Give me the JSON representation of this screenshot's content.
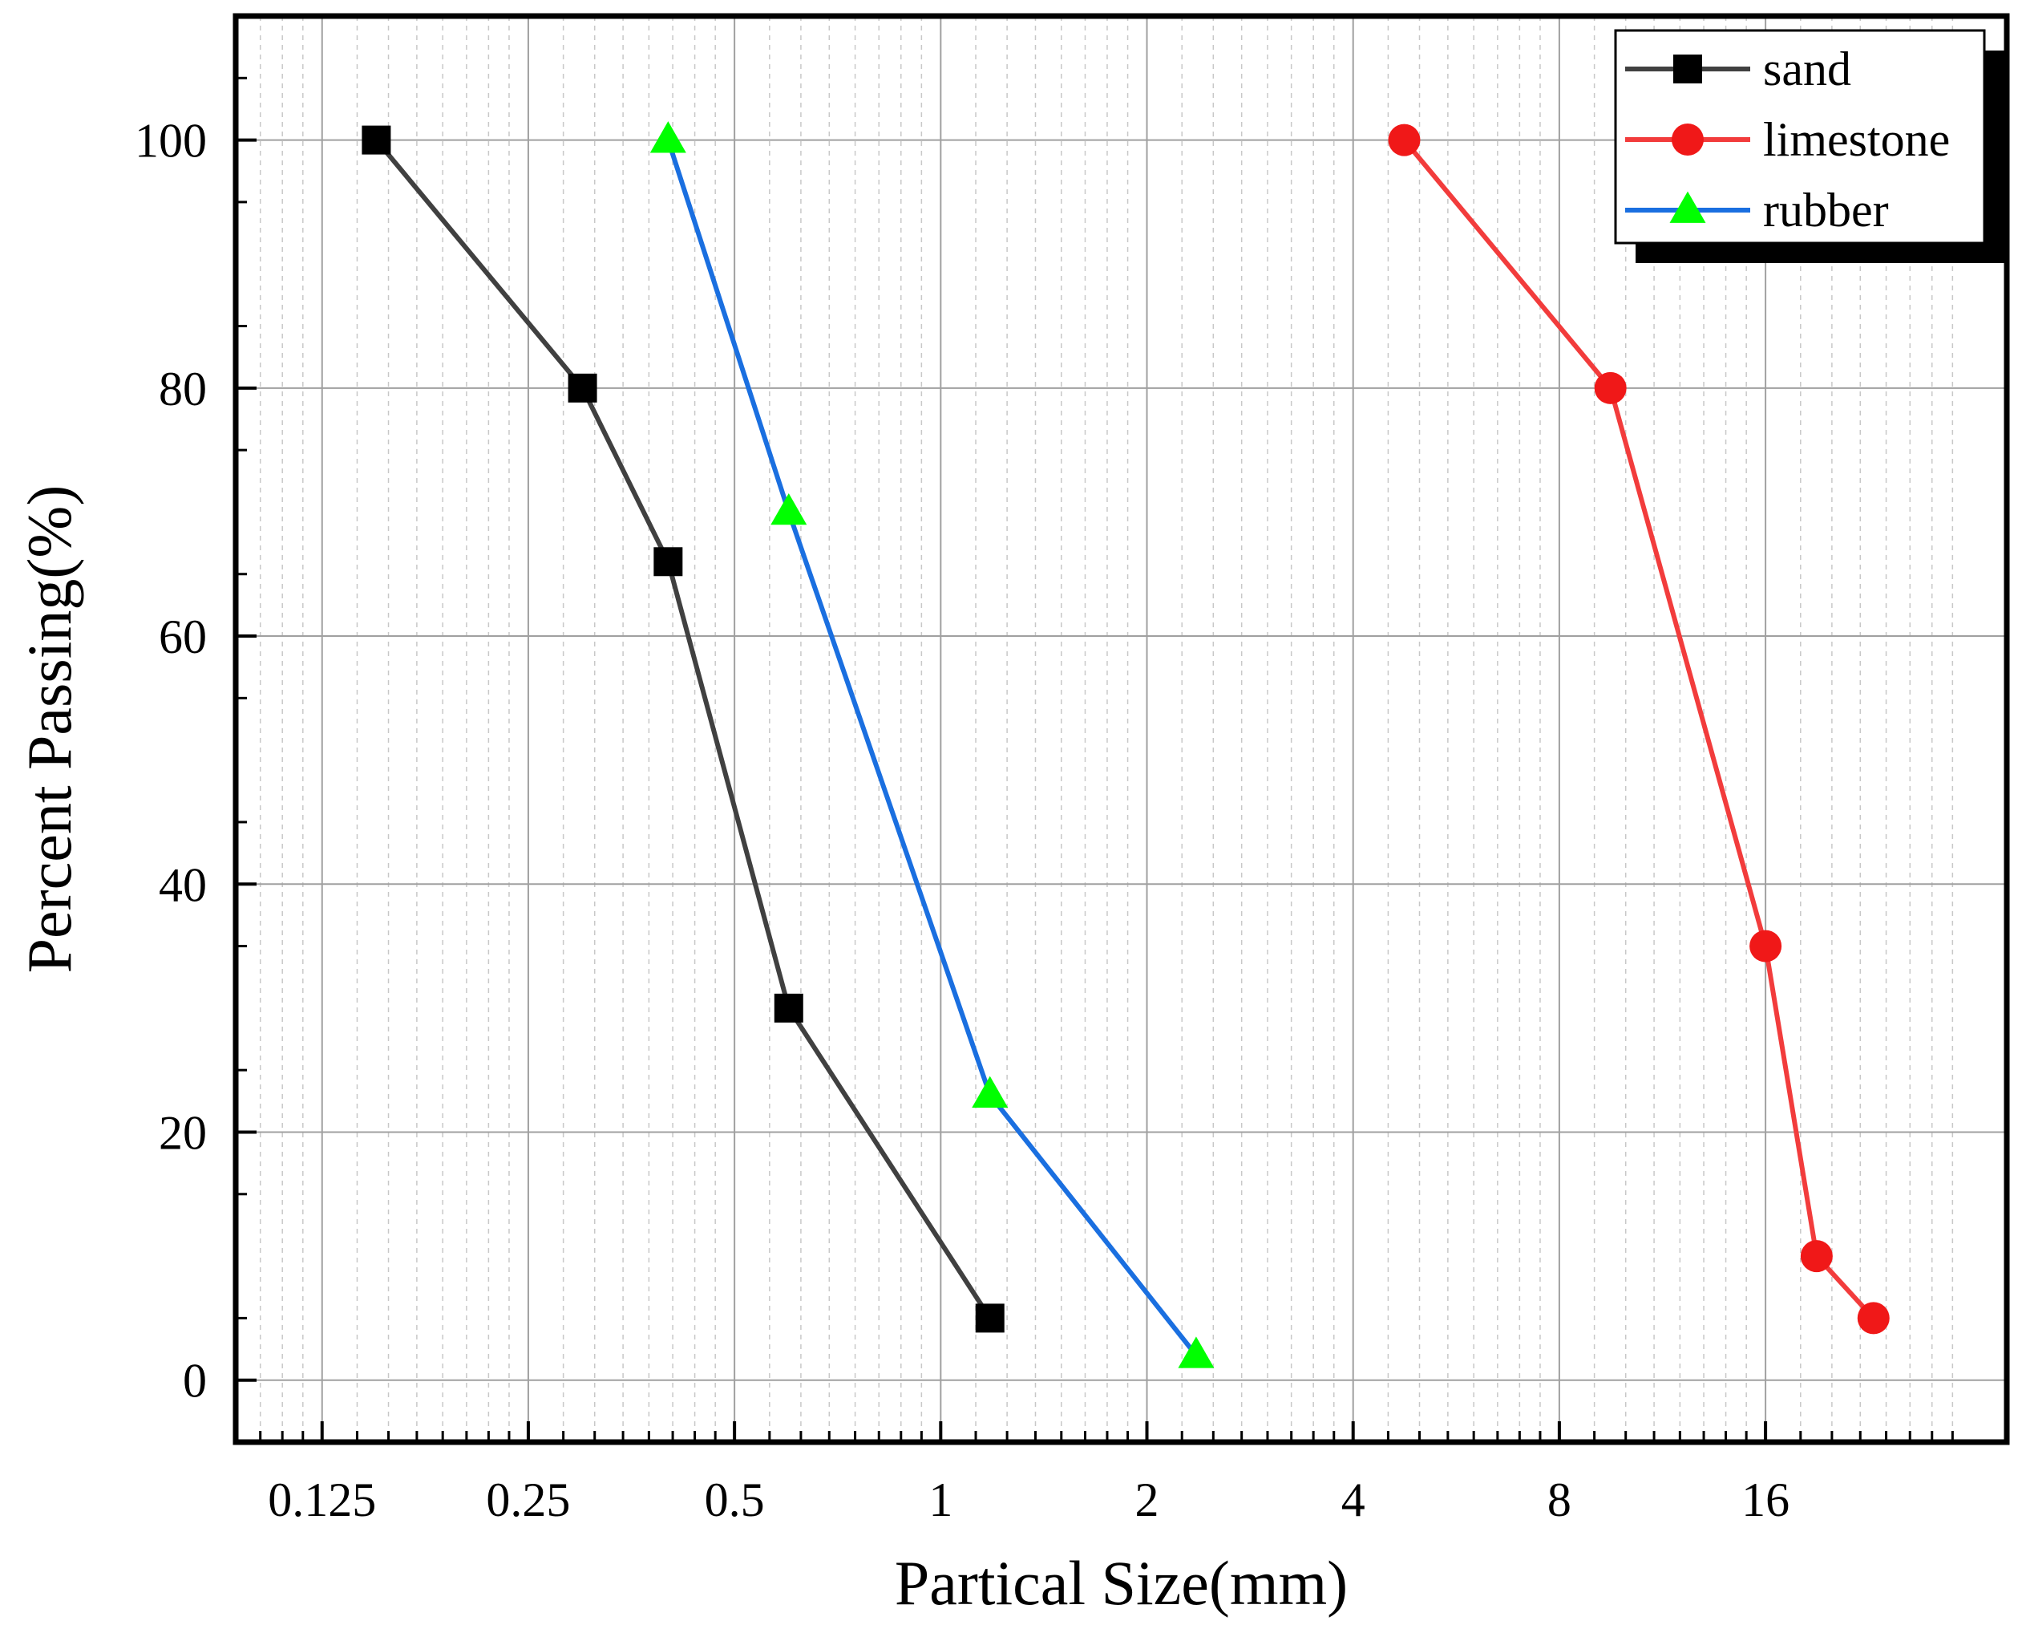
{
  "chart_data": {
    "type": "line",
    "title": "",
    "xlabel": "Partical Size(mm)",
    "ylabel": "Percent Passing(%)",
    "x_scale": "log2",
    "xlim": [
      0.0935,
      36
    ],
    "ylim": [
      -5,
      110
    ],
    "x_ticks": [
      0.125,
      0.25,
      0.5,
      1,
      2,
      4,
      8,
      16
    ],
    "x_tick_labels": [
      "0.125",
      "0.25",
      "0.5",
      "1",
      "2",
      "4",
      "8",
      "16"
    ],
    "y_ticks": [
      0,
      20,
      40,
      60,
      80,
      100
    ],
    "y_tick_labels": [
      "0",
      "20",
      "40",
      "60",
      "80",
      "100"
    ],
    "grid": true,
    "legend_position": "top-right",
    "series": [
      {
        "name": "sand",
        "color": "#404040",
        "marker": "square",
        "marker_color": "#000000",
        "x": [
          0.15,
          0.3,
          0.4,
          0.6,
          1.18
        ],
        "y": [
          100,
          80,
          66,
          30,
          5
        ]
      },
      {
        "name": "limestone",
        "color": "#f23c3c",
        "marker": "circle",
        "marker_color": "#f01818",
        "x": [
          4.75,
          9.5,
          16,
          19,
          23
        ],
        "y": [
          100,
          80,
          35,
          10,
          5
        ]
      },
      {
        "name": "rubber",
        "color": "#1a6fe0",
        "marker": "triangle",
        "marker_color": "#00ff00",
        "x": [
          0.4,
          0.6,
          1.18,
          2.36
        ],
        "y": [
          100,
          70,
          23,
          2
        ]
      }
    ]
  }
}
